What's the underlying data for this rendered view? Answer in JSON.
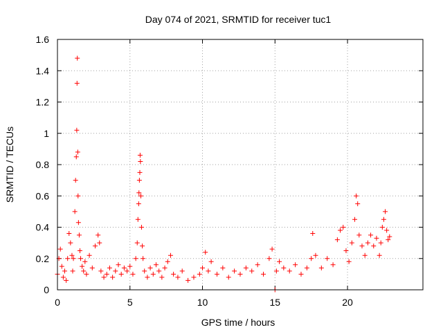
{
  "chart_data": {
    "type": "scatter",
    "title": "Day 074 of 2021, SRMTID for receiver tuc1",
    "xlabel": "GPS time / hours",
    "ylabel": "SRMTID / TECUs",
    "xlim": [
      0,
      25.2
    ],
    "ylim": [
      0,
      1.6
    ],
    "xticks": [
      0,
      5,
      10,
      15,
      20
    ],
    "xtick_labels": [
      "0",
      "5",
      "10",
      "15",
      "20"
    ],
    "yticks": [
      0,
      0.2,
      0.4,
      0.6,
      0.8,
      1,
      1.2,
      1.4,
      1.6
    ],
    "ytick_labels": [
      "0",
      "0.2",
      "0.4",
      "0.6",
      "0.8",
      "1",
      "1.2",
      "1.4",
      "1.6"
    ],
    "grid": true,
    "marker": "+",
    "color": "#ff0000",
    "series": [
      {
        "name": "tuc1",
        "x": [
          0.0,
          0.1,
          0.2,
          0.3,
          0.4,
          0.5,
          0.6,
          0.7,
          0.8,
          0.9,
          1.0,
          1.05,
          1.1,
          1.2,
          1.25,
          1.3,
          1.33,
          1.35,
          1.37,
          1.4,
          1.42,
          1.45,
          1.5,
          1.55,
          1.6,
          1.7,
          1.8,
          1.9,
          2.0,
          2.2,
          2.4,
          2.6,
          2.8,
          2.9,
          3.0,
          3.2,
          3.4,
          3.6,
          3.8,
          4.0,
          4.2,
          4.4,
          4.6,
          4.8,
          5.0,
          5.2,
          5.4,
          5.5,
          5.55,
          5.6,
          5.62,
          5.65,
          5.68,
          5.7,
          5.72,
          5.75,
          5.8,
          5.85,
          5.9,
          6.0,
          6.2,
          6.4,
          6.6,
          6.8,
          7.0,
          7.2,
          7.4,
          7.6,
          7.8,
          8.0,
          8.3,
          8.6,
          9.0,
          9.4,
          9.8,
          10.0,
          10.2,
          10.4,
          10.6,
          11.0,
          11.4,
          11.8,
          12.2,
          12.6,
          13.0,
          13.4,
          13.8,
          14.2,
          14.6,
          14.8,
          15.0,
          15.1,
          15.3,
          15.6,
          16.0,
          16.4,
          16.8,
          17.2,
          17.5,
          17.6,
          17.8,
          18.2,
          18.6,
          19.0,
          19.3,
          19.5,
          19.7,
          19.9,
          20.1,
          20.3,
          20.5,
          20.6,
          20.7,
          20.8,
          21.0,
          21.2,
          21.4,
          21.6,
          21.8,
          22.0,
          22.2,
          22.3,
          22.4,
          22.5,
          22.6,
          22.7,
          22.8,
          22.9
        ],
        "values": [
          0.1,
          0.2,
          0.26,
          0.15,
          0.08,
          0.12,
          0.06,
          0.2,
          0.36,
          0.3,
          0.22,
          0.12,
          0.2,
          0.5,
          0.7,
          0.85,
          1.02,
          1.32,
          1.48,
          0.88,
          0.6,
          0.43,
          0.35,
          0.25,
          0.2,
          0.15,
          0.12,
          0.18,
          0.1,
          0.22,
          0.14,
          0.28,
          0.35,
          0.3,
          0.12,
          0.08,
          0.1,
          0.14,
          0.08,
          0.12,
          0.16,
          0.1,
          0.14,
          0.12,
          0.15,
          0.1,
          0.2,
          0.3,
          0.45,
          0.55,
          0.62,
          0.7,
          0.75,
          0.86,
          0.82,
          0.6,
          0.4,
          0.28,
          0.2,
          0.12,
          0.08,
          0.14,
          0.1,
          0.16,
          0.12,
          0.08,
          0.14,
          0.18,
          0.22,
          0.1,
          0.08,
          0.12,
          0.06,
          0.08,
          0.1,
          0.14,
          0.24,
          0.12,
          0.18,
          0.1,
          0.14,
          0.08,
          0.12,
          0.1,
          0.14,
          0.12,
          0.16,
          0.1,
          0.2,
          0.26,
          0.0,
          0.12,
          0.18,
          0.14,
          0.12,
          0.16,
          0.1,
          0.14,
          0.2,
          0.36,
          0.22,
          0.14,
          0.2,
          0.16,
          0.32,
          0.38,
          0.4,
          0.25,
          0.18,
          0.3,
          0.45,
          0.6,
          0.55,
          0.35,
          0.28,
          0.22,
          0.3,
          0.35,
          0.28,
          0.33,
          0.22,
          0.3,
          0.4,
          0.45,
          0.5,
          0.38,
          0.32,
          0.34
        ]
      }
    ]
  }
}
